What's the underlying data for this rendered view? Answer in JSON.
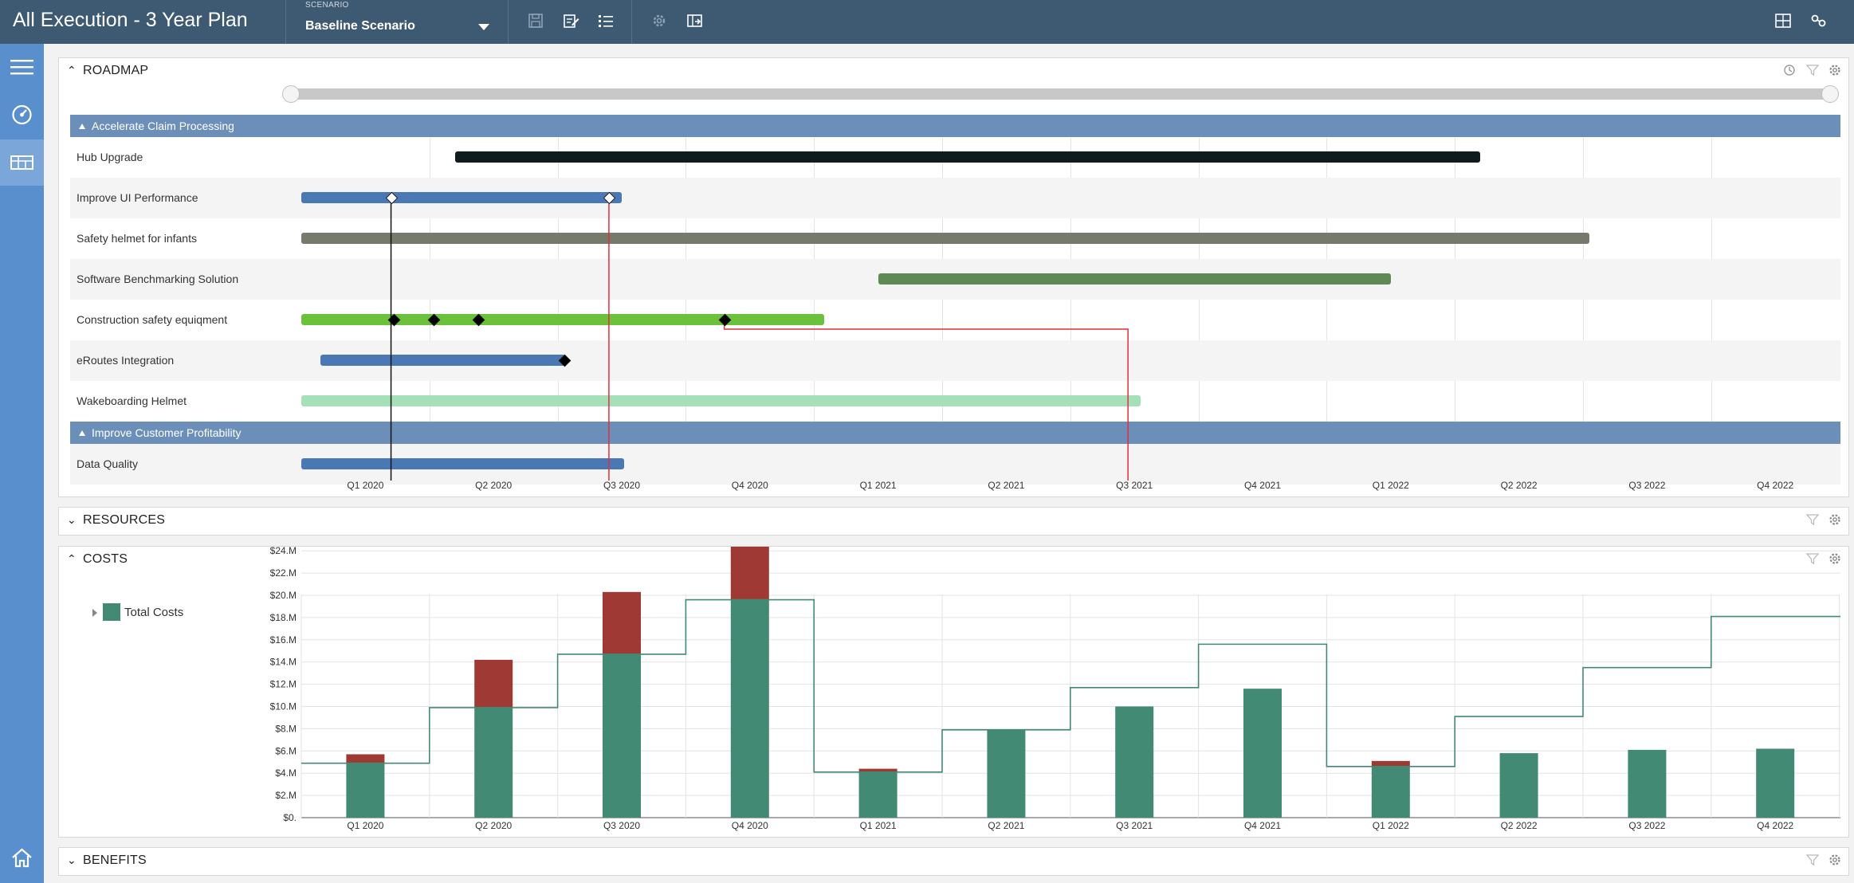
{
  "app": {
    "title": "All Execution - 3 Year Plan"
  },
  "scenario": {
    "label": "SCENARIO",
    "value": "Baseline Scenario"
  },
  "toolbar_icons": [
    "save-icon",
    "edit-icon",
    "checklist-icon",
    "gear-icon",
    "export-icon"
  ],
  "right_icons": [
    "layout-icon",
    "share-icon"
  ],
  "sidebar": [
    "menu-icon",
    "dashboard-icon",
    "roadmap-icon",
    "home-icon"
  ],
  "roadmap": {
    "title": "ROADMAP",
    "quarters": [
      "Q1 2020",
      "Q2 2020",
      "Q3 2020",
      "Q4 2020",
      "Q1 2021",
      "Q2 2021",
      "Q3 2021",
      "Q4 2021",
      "Q1 2022",
      "Q2 2022",
      "Q3 2022",
      "Q4 2022"
    ],
    "groups": [
      {
        "name": "Accelerate Claim Processing",
        "rows": [
          {
            "label": "Hub Upgrade",
            "start": 1.2,
            "end": 9.2,
            "color": "#0f1c1e",
            "milestones": []
          },
          {
            "label": "Improve UI Performance",
            "start": 0,
            "end": 2.5,
            "color": "#4a78b5",
            "milestones": [
              {
                "at": 0.7,
                "style": "open"
              },
              {
                "at": 2.4,
                "style": "open"
              }
            ]
          },
          {
            "label": "Safety helmet for infants",
            "start": 0,
            "end": 10.05,
            "color": "#767a6a",
            "milestones": []
          },
          {
            "label": "Software Benchmarking Solution",
            "start": 4.5,
            "end": 8.5,
            "color": "#5f8a55",
            "milestones": []
          },
          {
            "label": "Construction safety equiqment",
            "start": 0,
            "end": 4.08,
            "color": "#6cc13c",
            "milestones": [
              {
                "at": 0.72,
                "style": "solid"
              },
              {
                "at": 1.03,
                "style": "solid"
              },
              {
                "at": 1.38,
                "style": "solid"
              },
              {
                "at": 3.3,
                "style": "solid"
              }
            ]
          },
          {
            "label": "eRoutes Integration",
            "start": 0.15,
            "end": 2.06,
            "color": "#4a78b5",
            "milestones": [
              {
                "at": 2.05,
                "style": "solid"
              }
            ]
          },
          {
            "label": "Wakeboarding Helmet",
            "start": 0,
            "end": 6.55,
            "color": "#a6e0b8",
            "milestones": []
          }
        ]
      },
      {
        "name": "Improve Customer Profitability",
        "rows": [
          {
            "label": "Data Quality",
            "start": 0,
            "end": 2.52,
            "color": "#4a78b5",
            "milestones": []
          }
        ]
      }
    ]
  },
  "resources": {
    "title": "RESOURCES"
  },
  "costs": {
    "title": "COSTS"
  },
  "benefits": {
    "title": "BENEFITS"
  },
  "chart_data": {
    "type": "bar",
    "categories": [
      "Q1 2020",
      "Q2 2020",
      "Q3 2020",
      "Q4 2020",
      "Q1 2021",
      "Q2 2021",
      "Q3 2021",
      "Q4 2021",
      "Q1 2022",
      "Q2 2022",
      "Q3 2022",
      "Q4 2022"
    ],
    "series": [
      {
        "name": "Total Costs",
        "values": [
          4.9,
          9.9,
          14.7,
          19.6,
          4.1,
          7.9,
          10.0,
          11.6,
          4.6,
          5.8,
          6.1,
          6.2
        ],
        "color": "#438a74"
      },
      {
        "values": [
          0.8,
          4.3,
          5.6,
          6.5,
          0.3,
          0,
          0,
          0,
          0.5,
          0,
          0,
          0
        ],
        "color": "#9e3a33"
      },
      {
        "type": "step-line",
        "values": [
          4.9,
          9.9,
          14.7,
          19.6,
          4.1,
          7.9,
          11.7,
          15.6,
          4.6,
          9.1,
          13.5,
          18.1
        ],
        "color": "#438a74"
      }
    ],
    "yticks": [
      "$0.",
      "$2.M",
      "$4.M",
      "$6.M",
      "$8.M",
      "$10.M",
      "$12.M",
      "$14.M",
      "$16.M",
      "$18.M",
      "$20.M",
      "$22.M",
      "$24.M"
    ],
    "ylim": [
      0,
      26
    ],
    "legend": "top-left",
    "grid": true
  }
}
